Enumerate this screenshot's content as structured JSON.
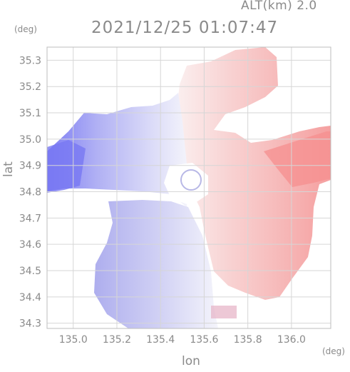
{
  "header": {
    "altitude": "ALT(km) 2.0",
    "timestamp": "2021/12/25 01:07:47"
  },
  "axes": {
    "lat_unit": "(deg)",
    "lon_unit": "(deg)",
    "ylabel": "lat",
    "xlabel": "lon"
  },
  "chart_data": {
    "type": "heatmap",
    "title": "2021/12/25 01:07:47",
    "subtitle": "ALT(km) 2.0",
    "xlabel": "lon",
    "ylabel": "lat",
    "xlim": [
      134.88,
      136.18
    ],
    "ylim": [
      34.28,
      35.35
    ],
    "x_ticks": [
      "135.0",
      "135.2",
      "135.4",
      "135.6",
      "135.8",
      "136.0"
    ],
    "y_ticks": [
      "35.3",
      "35.2",
      "35.1",
      "35.0",
      "34.9",
      "34.8",
      "34.7",
      "34.6",
      "34.5",
      "34.4",
      "34.3"
    ],
    "grid": true,
    "colormap": {
      "negative": "#7f7ff5",
      "zero": "#ffffff",
      "positive": "#f59494"
    },
    "radar_center": [
      135.51,
      34.86
    ]
  }
}
